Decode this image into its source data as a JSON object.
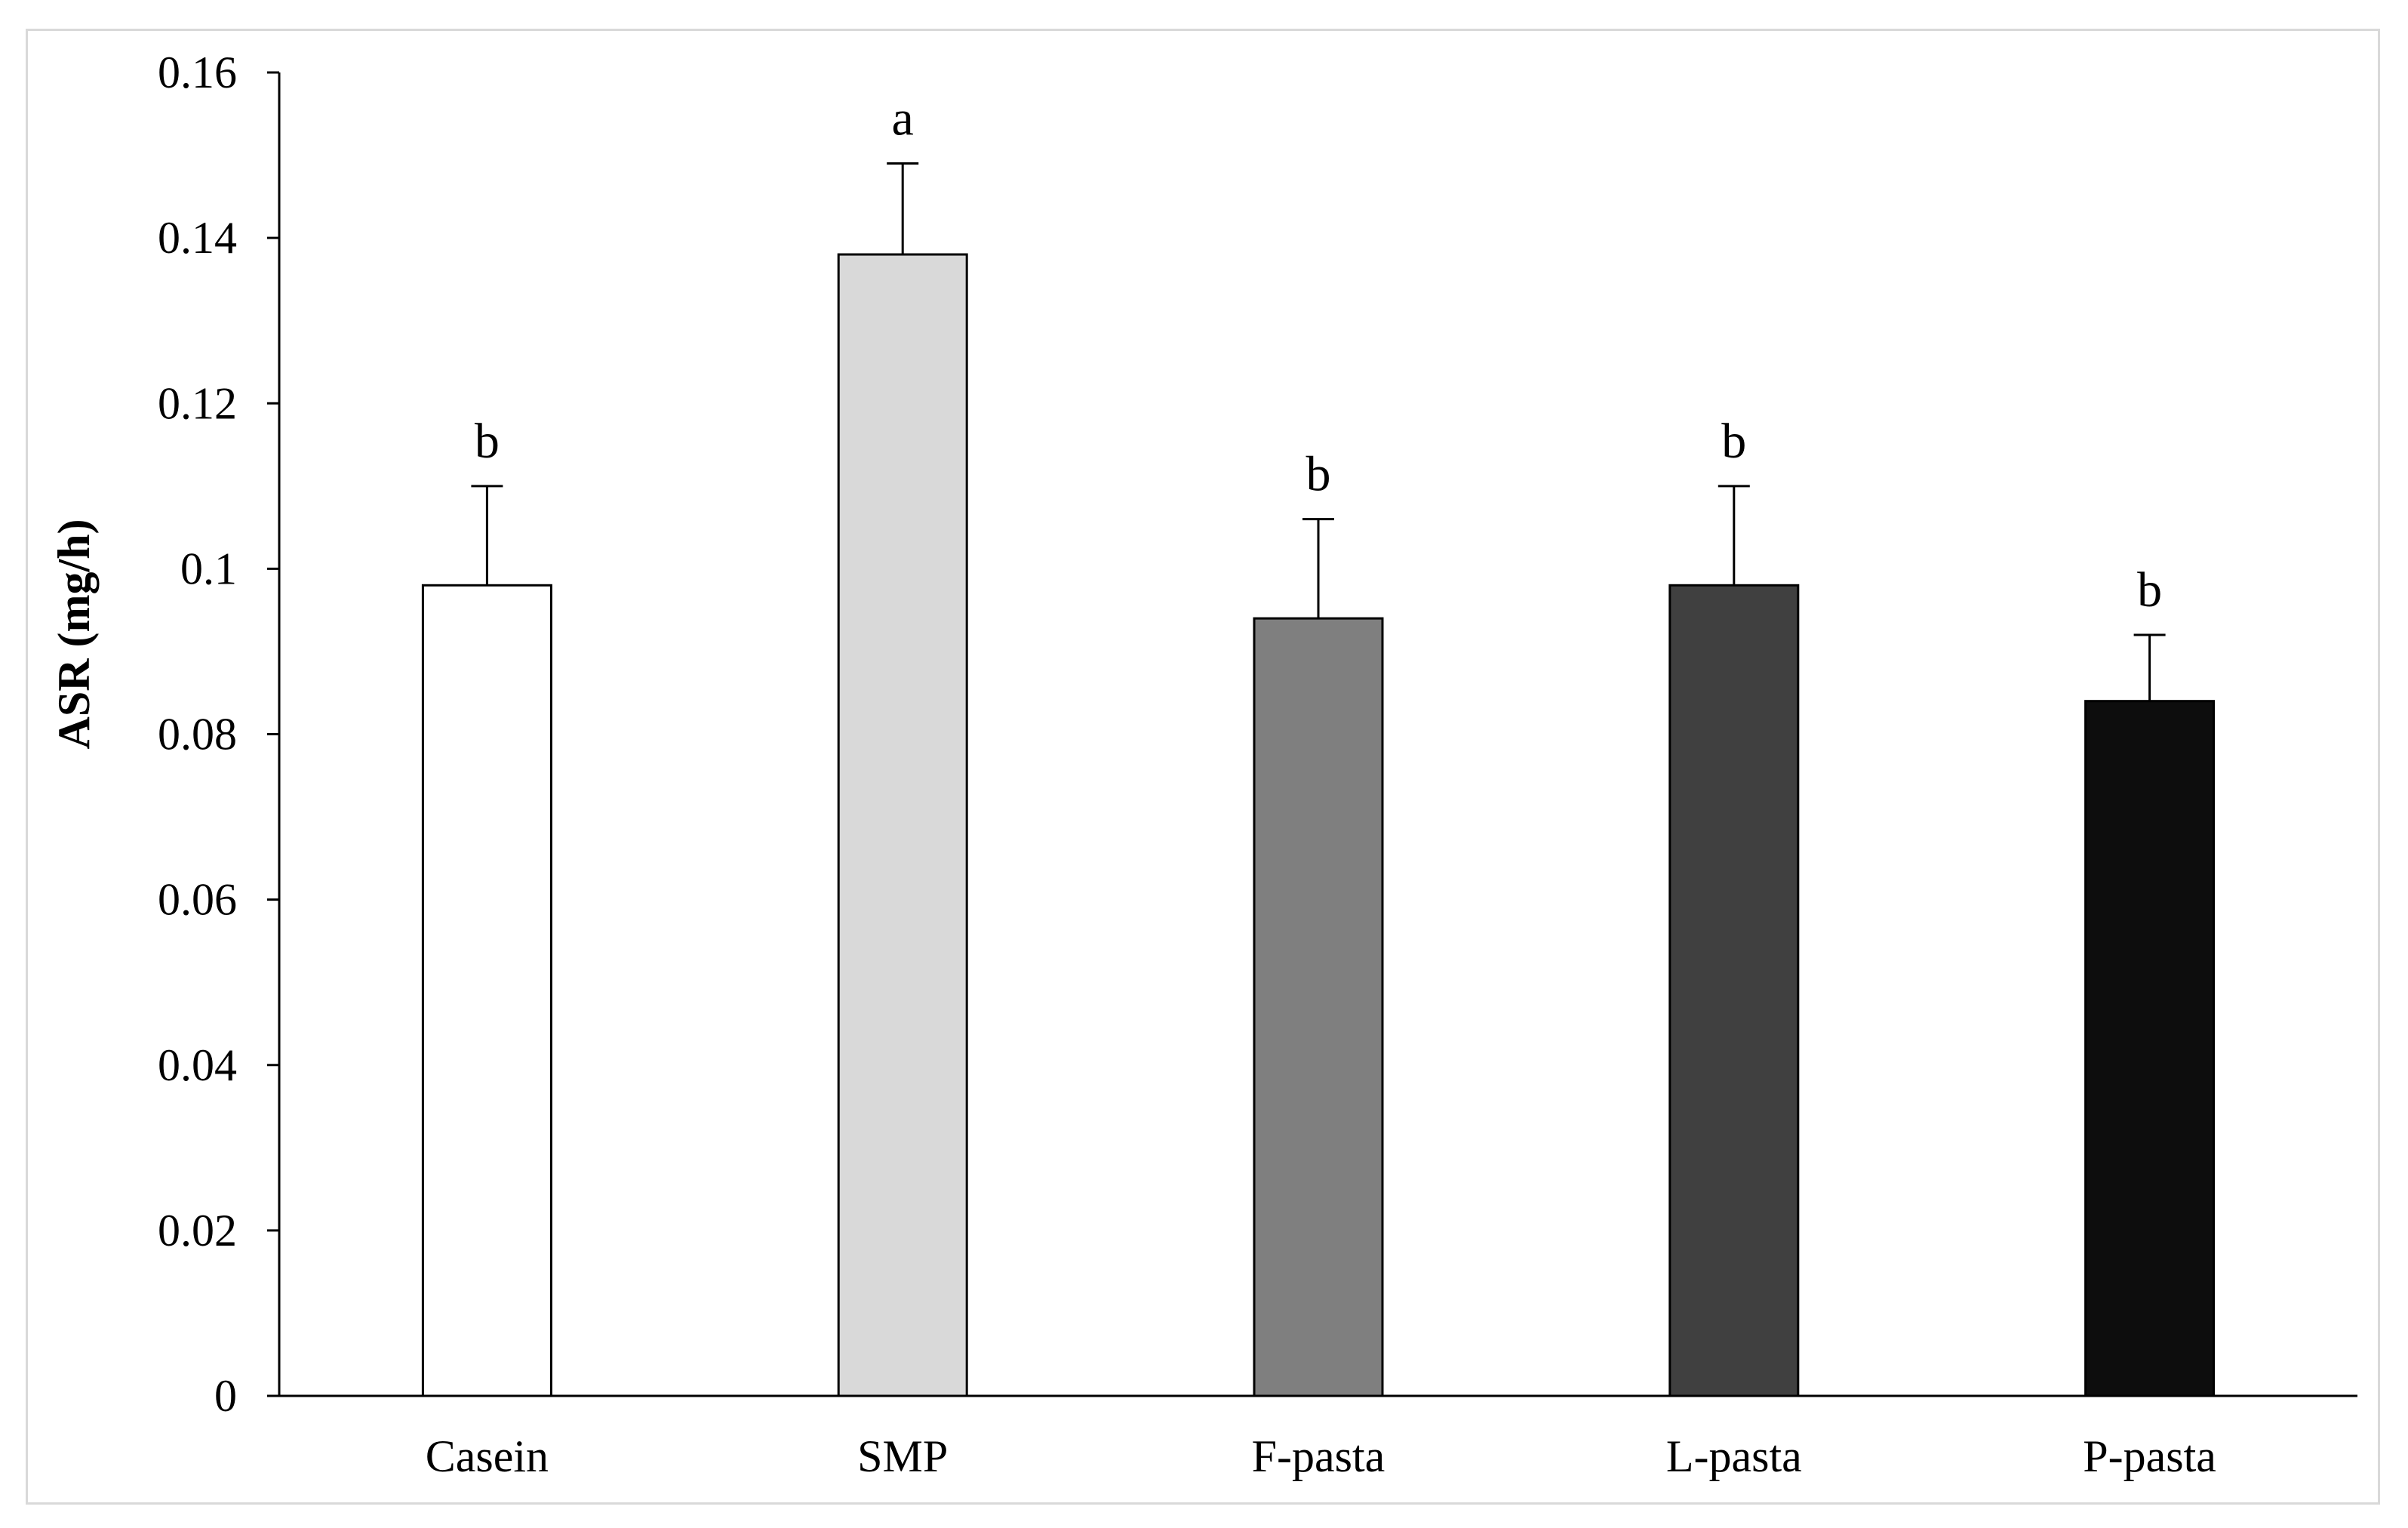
{
  "chart_data": {
    "type": "bar",
    "title": "",
    "xlabel": "",
    "ylabel": "ASR (mg/h)",
    "ylim": [
      0,
      0.16
    ],
    "yticks": [
      0,
      0.02,
      0.04,
      0.06,
      0.08,
      0.1,
      0.12,
      0.14,
      0.16
    ],
    "ytick_labels": [
      "0",
      "0.02",
      "0.04",
      "0.06",
      "0.08",
      "0.1",
      "0.12",
      "0.14",
      "0.16"
    ],
    "categories": [
      "Casein",
      "SMP",
      "F-pasta",
      "L-pasta",
      "P-pasta"
    ],
    "values": [
      0.098,
      0.138,
      0.094,
      0.098,
      0.084
    ],
    "errors": [
      0.012,
      0.011,
      0.012,
      0.012,
      0.008
    ],
    "significance_letters": [
      "b",
      "a",
      "b",
      "b",
      "b"
    ],
    "bar_colors": [
      "#ffffff",
      "#d9d9d9",
      "#7f7f7f",
      "#404040",
      "#0d0d0d"
    ],
    "grid": false,
    "legend": "none"
  }
}
